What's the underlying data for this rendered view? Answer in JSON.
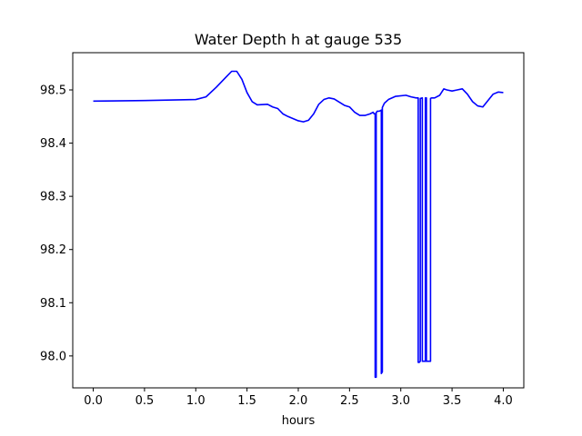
{
  "chart_data": {
    "type": "line",
    "title": "Water Depth h at gauge 535",
    "xlabel": "hours",
    "ylabel": "",
    "xlim": [
      -0.2,
      4.2
    ],
    "ylim": [
      97.94,
      98.57
    ],
    "xticks": [
      0.0,
      0.5,
      1.0,
      1.5,
      2.0,
      2.5,
      3.0,
      3.5,
      4.0
    ],
    "xtick_labels": [
      "0.0",
      "0.5",
      "1.0",
      "1.5",
      "2.0",
      "2.5",
      "3.0",
      "3.5",
      "4.0"
    ],
    "yticks": [
      98.0,
      98.1,
      98.2,
      98.3,
      98.4,
      98.5
    ],
    "ytick_labels": [
      "98.0",
      "98.1",
      "98.2",
      "98.3",
      "98.4",
      "98.5"
    ],
    "grid": false,
    "legend": "none",
    "series": [
      {
        "color": "#0000ff",
        "x": [
          0.0,
          0.5,
          1.0,
          1.1,
          1.2,
          1.3,
          1.35,
          1.4,
          1.45,
          1.5,
          1.55,
          1.6,
          1.7,
          1.75,
          1.8,
          1.85,
          1.9,
          2.0,
          2.05,
          2.1,
          2.15,
          2.2,
          2.25,
          2.3,
          2.35,
          2.4,
          2.45,
          2.5,
          2.55,
          2.6,
          2.65,
          2.7,
          2.73,
          2.74,
          2.75,
          2.75,
          2.76,
          2.76,
          2.77,
          2.79,
          2.81,
          2.81,
          2.82,
          2.82,
          2.84,
          2.88,
          2.95,
          3.05,
          3.1,
          3.15,
          3.17,
          3.17,
          3.18,
          3.19,
          3.19,
          3.21,
          3.21,
          3.24,
          3.24,
          3.25,
          3.25,
          3.29,
          3.29,
          3.3,
          3.3,
          3.33,
          3.38,
          3.42,
          3.45,
          3.5,
          3.55,
          3.6,
          3.65,
          3.7,
          3.75,
          3.8,
          3.85,
          3.9,
          3.95,
          4.0
        ],
        "y": [
          98.479,
          98.48,
          98.482,
          98.487,
          98.505,
          98.525,
          98.535,
          98.535,
          98.52,
          98.495,
          98.478,
          98.472,
          98.473,
          98.468,
          98.465,
          98.455,
          98.45,
          98.442,
          98.44,
          98.443,
          98.455,
          98.473,
          98.482,
          98.485,
          98.483,
          98.477,
          98.471,
          98.468,
          98.458,
          98.452,
          98.452,
          98.455,
          98.458,
          98.455,
          98.455,
          97.96,
          97.96,
          98.457,
          98.46,
          98.46,
          98.462,
          97.967,
          97.97,
          98.467,
          98.475,
          98.482,
          98.488,
          98.49,
          98.487,
          98.485,
          98.485,
          97.988,
          97.988,
          97.99,
          98.484,
          98.485,
          97.99,
          97.99,
          98.485,
          98.485,
          97.99,
          97.99,
          98.484,
          98.485,
          98.485,
          98.485,
          98.49,
          98.502,
          98.5,
          98.498,
          98.5,
          98.502,
          98.492,
          98.478,
          98.47,
          98.468,
          98.48,
          98.492,
          98.496,
          98.495
        ]
      }
    ]
  }
}
